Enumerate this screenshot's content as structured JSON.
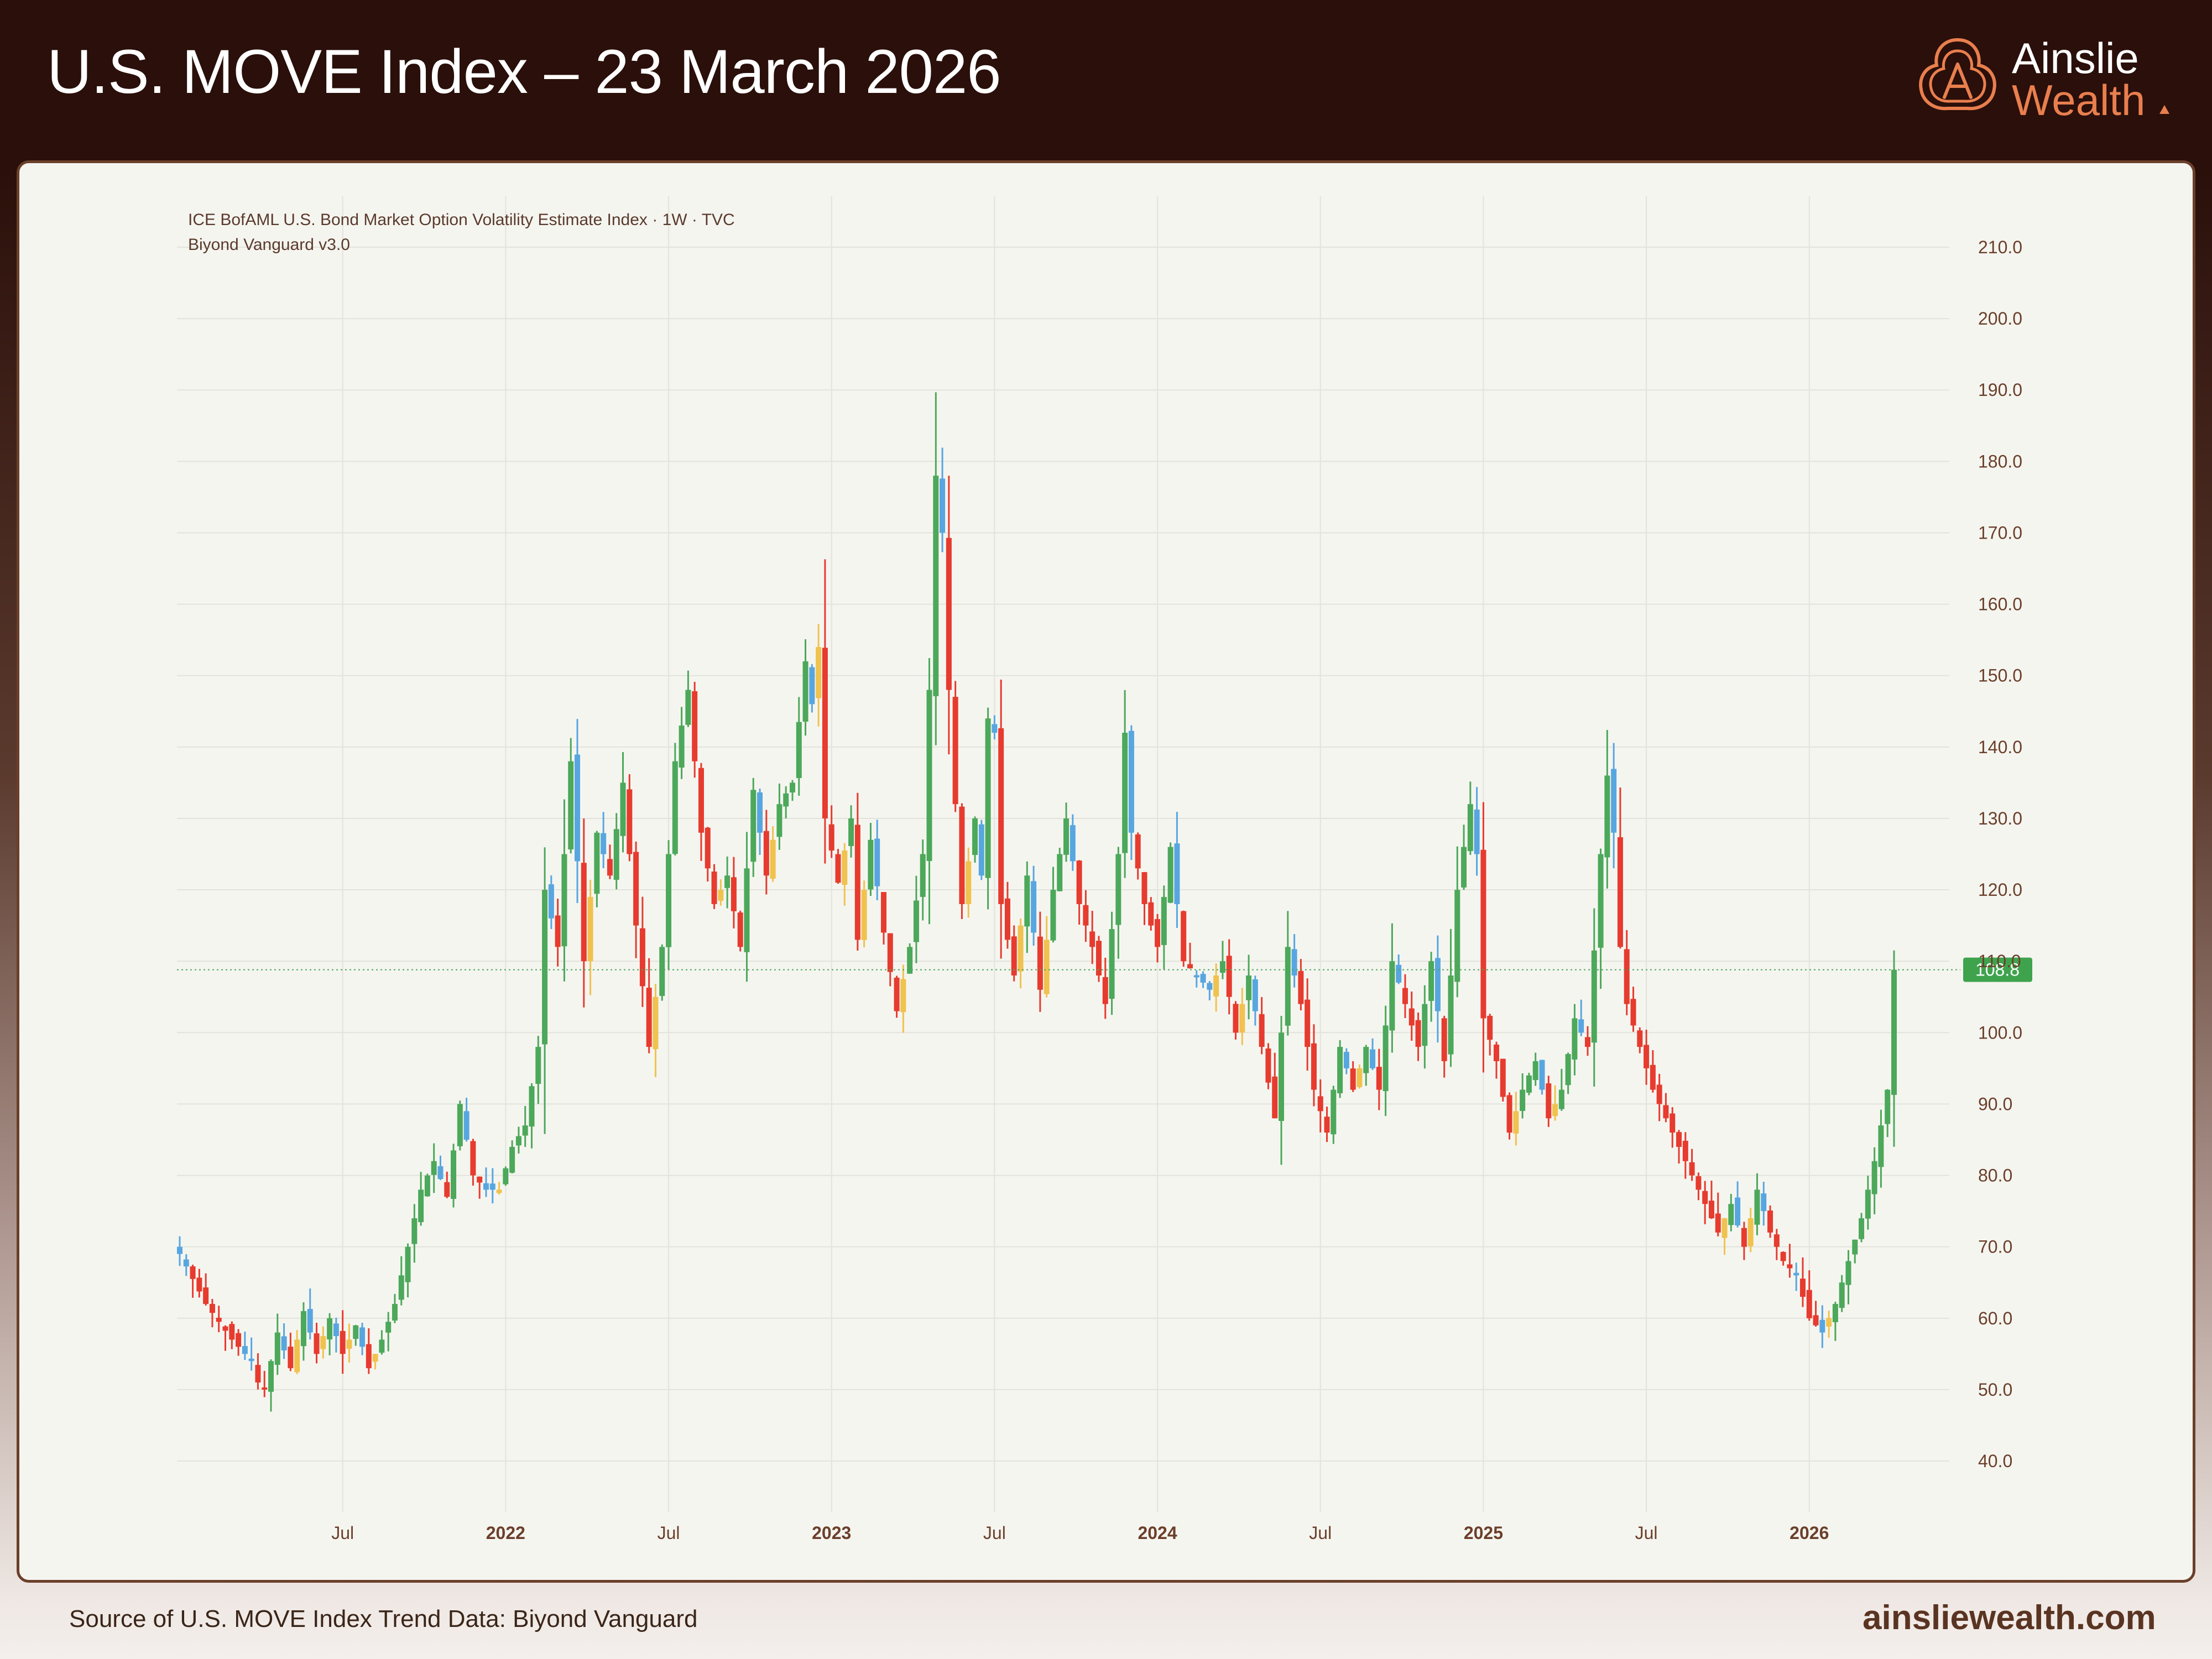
{
  "page": {
    "title": "U.S. MOVE Index – 23 March 2026",
    "logo": {
      "line1": "Ainslie",
      "line2": "Wealth"
    },
    "footer": {
      "source": "Source of U.S. MOVE Index Trend Data: Biyond Vanguard",
      "website": "ainsliewealth.com"
    }
  },
  "colors": {
    "header_bg": "#2a0f0a",
    "card_bg": "#f5f5f0",
    "card_border": "#6b3f2a",
    "grid": "#e3e3dc",
    "axis_text": "#6b3f2a",
    "up_strong": "#4ca85a",
    "up_weak": "#f0c24e",
    "down_strong": "#e63b2e",
    "down_weak": "#57a6e0",
    "price_line": "#4ca85a",
    "price_label_bg": "#3fa34d",
    "logo_accent": "#e97f4e"
  },
  "chart_data": {
    "type": "candlestick",
    "title": "ICE BofAML U.S. Bond Market Option Volatility Estimate Index · 1W · TVC",
    "subtitle": "Biyond Vanguard v3.0",
    "interval": "1W",
    "ylim": [
      35,
      215
    ],
    "y_ticks": [
      "210.0",
      "200.0",
      "190.0",
      "180.0",
      "170.0",
      "160.0",
      "150.0",
      "140.0",
      "130.0",
      "120.0",
      "110.0",
      "100.0",
      "90.0",
      "80.0",
      "70.0",
      "60.0",
      "50.0",
      "40.0"
    ],
    "y_tick_values": [
      210,
      200,
      190,
      180,
      170,
      160,
      150,
      140,
      130,
      120,
      110,
      100,
      90,
      80,
      70,
      60,
      50,
      40
    ],
    "x_ticks": [
      {
        "label": "Jul",
        "week": 25,
        "bold": false
      },
      {
        "label": "2022",
        "week": 50,
        "bold": true
      },
      {
        "label": "Jul",
        "week": 75,
        "bold": false
      },
      {
        "label": "2023",
        "week": 100,
        "bold": true
      },
      {
        "label": "Jul",
        "week": 125,
        "bold": false
      },
      {
        "label": "2024",
        "week": 150,
        "bold": true
      },
      {
        "label": "Jul",
        "week": 175,
        "bold": false
      },
      {
        "label": "2025",
        "week": 200,
        "bold": true
      },
      {
        "label": "Jul",
        "week": 225,
        "bold": false
      },
      {
        "label": "2026",
        "week": 250,
        "bold": true
      }
    ],
    "last_price": 108.8,
    "last_price_label": "108.8",
    "candle_colors": "green = up (strong), yellow = mixed, red = down (strong), blue = weak",
    "anchors_week_close": [
      [
        0,
        69
      ],
      [
        4,
        62
      ],
      [
        8,
        57
      ],
      [
        11,
        54
      ],
      [
        12,
        51
      ],
      [
        13,
        50
      ],
      [
        15,
        58
      ],
      [
        17,
        53
      ],
      [
        19,
        61
      ],
      [
        21,
        55
      ],
      [
        23,
        60
      ],
      [
        25,
        55
      ],
      [
        27,
        59
      ],
      [
        29,
        53
      ],
      [
        31,
        57
      ],
      [
        33,
        62
      ],
      [
        35,
        70
      ],
      [
        37,
        78
      ],
      [
        39,
        82
      ],
      [
        41,
        77
      ],
      [
        43,
        90
      ],
      [
        45,
        80
      ],
      [
        47,
        78
      ],
      [
        49,
        78
      ],
      [
        51,
        84
      ],
      [
        53,
        87
      ],
      [
        55,
        98
      ],
      [
        56,
        120
      ],
      [
        58,
        112
      ],
      [
        60,
        138
      ],
      [
        62,
        110
      ],
      [
        64,
        128
      ],
      [
        66,
        122
      ],
      [
        68,
        135
      ],
      [
        70,
        115
      ],
      [
        72,
        98
      ],
      [
        74,
        112
      ],
      [
        76,
        138
      ],
      [
        78,
        148
      ],
      [
        80,
        128
      ],
      [
        82,
        118
      ],
      [
        84,
        122
      ],
      [
        86,
        112
      ],
      [
        88,
        134
      ],
      [
        90,
        122
      ],
      [
        92,
        132
      ],
      [
        94,
        135
      ],
      [
        96,
        152
      ],
      [
        97,
        146
      ],
      [
        98,
        154
      ],
      [
        99,
        130
      ],
      [
        101,
        121
      ],
      [
        103,
        130
      ],
      [
        104,
        113
      ],
      [
        106,
        127
      ],
      [
        108,
        114
      ],
      [
        110,
        103
      ],
      [
        112,
        112
      ],
      [
        114,
        125
      ],
      [
        115,
        148
      ],
      [
        116,
        178
      ],
      [
        117,
        170
      ],
      [
        118,
        148
      ],
      [
        119,
        132
      ],
      [
        120,
        118
      ],
      [
        122,
        130
      ],
      [
        123,
        122
      ],
      [
        124,
        144
      ],
      [
        125,
        142
      ],
      [
        126,
        118
      ],
      [
        128,
        108
      ],
      [
        130,
        122
      ],
      [
        132,
        106
      ],
      [
        134,
        120
      ],
      [
        136,
        130
      ],
      [
        138,
        118
      ],
      [
        140,
        112
      ],
      [
        142,
        104
      ],
      [
        144,
        125
      ],
      [
        145,
        142
      ],
      [
        146,
        128
      ],
      [
        148,
        118
      ],
      [
        150,
        112
      ],
      [
        152,
        126
      ],
      [
        154,
        110
      ],
      [
        156,
        108
      ],
      [
        158,
        106
      ],
      [
        160,
        110
      ],
      [
        162,
        100
      ],
      [
        164,
        108
      ],
      [
        166,
        98
      ],
      [
        168,
        88
      ],
      [
        170,
        112
      ],
      [
        172,
        104
      ],
      [
        174,
        92
      ],
      [
        176,
        86
      ],
      [
        178,
        98
      ],
      [
        180,
        92
      ],
      [
        182,
        98
      ],
      [
        184,
        92
      ],
      [
        186,
        110
      ],
      [
        188,
        104
      ],
      [
        190,
        98
      ],
      [
        192,
        110
      ],
      [
        194,
        96
      ],
      [
        196,
        120
      ],
      [
        198,
        132
      ],
      [
        199,
        125
      ],
      [
        200,
        102
      ],
      [
        202,
        96
      ],
      [
        204,
        86
      ],
      [
        206,
        92
      ],
      [
        208,
        96
      ],
      [
        210,
        88
      ],
      [
        212,
        92
      ],
      [
        214,
        102
      ],
      [
        216,
        98
      ],
      [
        218,
        125
      ],
      [
        219,
        136
      ],
      [
        220,
        128
      ],
      [
        221,
        112
      ],
      [
        222,
        104
      ],
      [
        224,
        98
      ],
      [
        226,
        92
      ],
      [
        228,
        88
      ],
      [
        230,
        84
      ],
      [
        232,
        80
      ],
      [
        234,
        76
      ],
      [
        236,
        72
      ],
      [
        238,
        76
      ],
      [
        240,
        70
      ],
      [
        242,
        78
      ],
      [
        244,
        72
      ],
      [
        246,
        68
      ],
      [
        248,
        66
      ],
      [
        250,
        60
      ],
      [
        252,
        58
      ],
      [
        254,
        62
      ],
      [
        256,
        68
      ],
      [
        258,
        74
      ],
      [
        260,
        82
      ],
      [
        262,
        92
      ],
      [
        263,
        108.8
      ]
    ]
  }
}
